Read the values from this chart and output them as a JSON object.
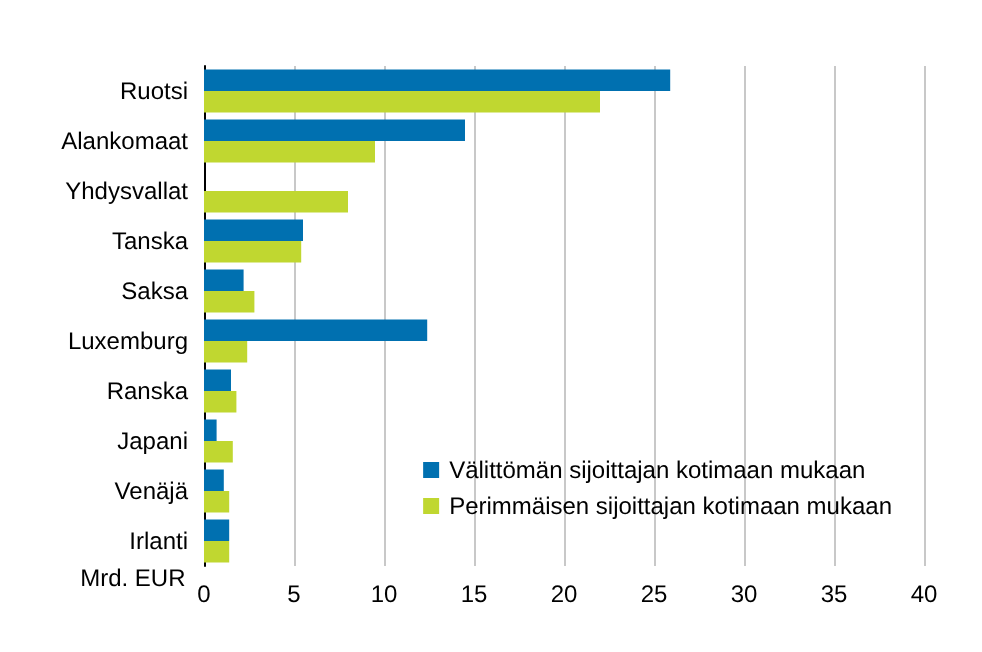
{
  "chart_data": {
    "type": "bar",
    "orientation": "horizontal",
    "xlabel": "Mrd. EUR",
    "categories": [
      "Ruotsi",
      "Alankomaat",
      "Yhdysvallat",
      "Tanska",
      "Saksa",
      "Luxemburg",
      "Ranska",
      "Japani",
      "Venäjä",
      "Irlanti"
    ],
    "series": [
      {
        "name": "Välittömän sijoittajan kotimaan mukaan",
        "color": "#0070b0",
        "values": [
          25.9,
          14.5,
          null,
          5.5,
          2.2,
          12.4,
          1.5,
          0.7,
          1.1,
          1.4
        ]
      },
      {
        "name": "Perimmäisen sijoittajan kotimaan mukaan",
        "color": "#c0d730",
        "values": [
          22.0,
          9.5,
          8.0,
          5.4,
          2.8,
          2.4,
          1.8,
          1.6,
          1.4,
          1.4
        ]
      }
    ],
    "xlim": [
      0,
      40
    ],
    "xticks": [
      0,
      5,
      10,
      15,
      20,
      25,
      30,
      35,
      40
    ],
    "grid": "x",
    "legend": "bottom right"
  }
}
